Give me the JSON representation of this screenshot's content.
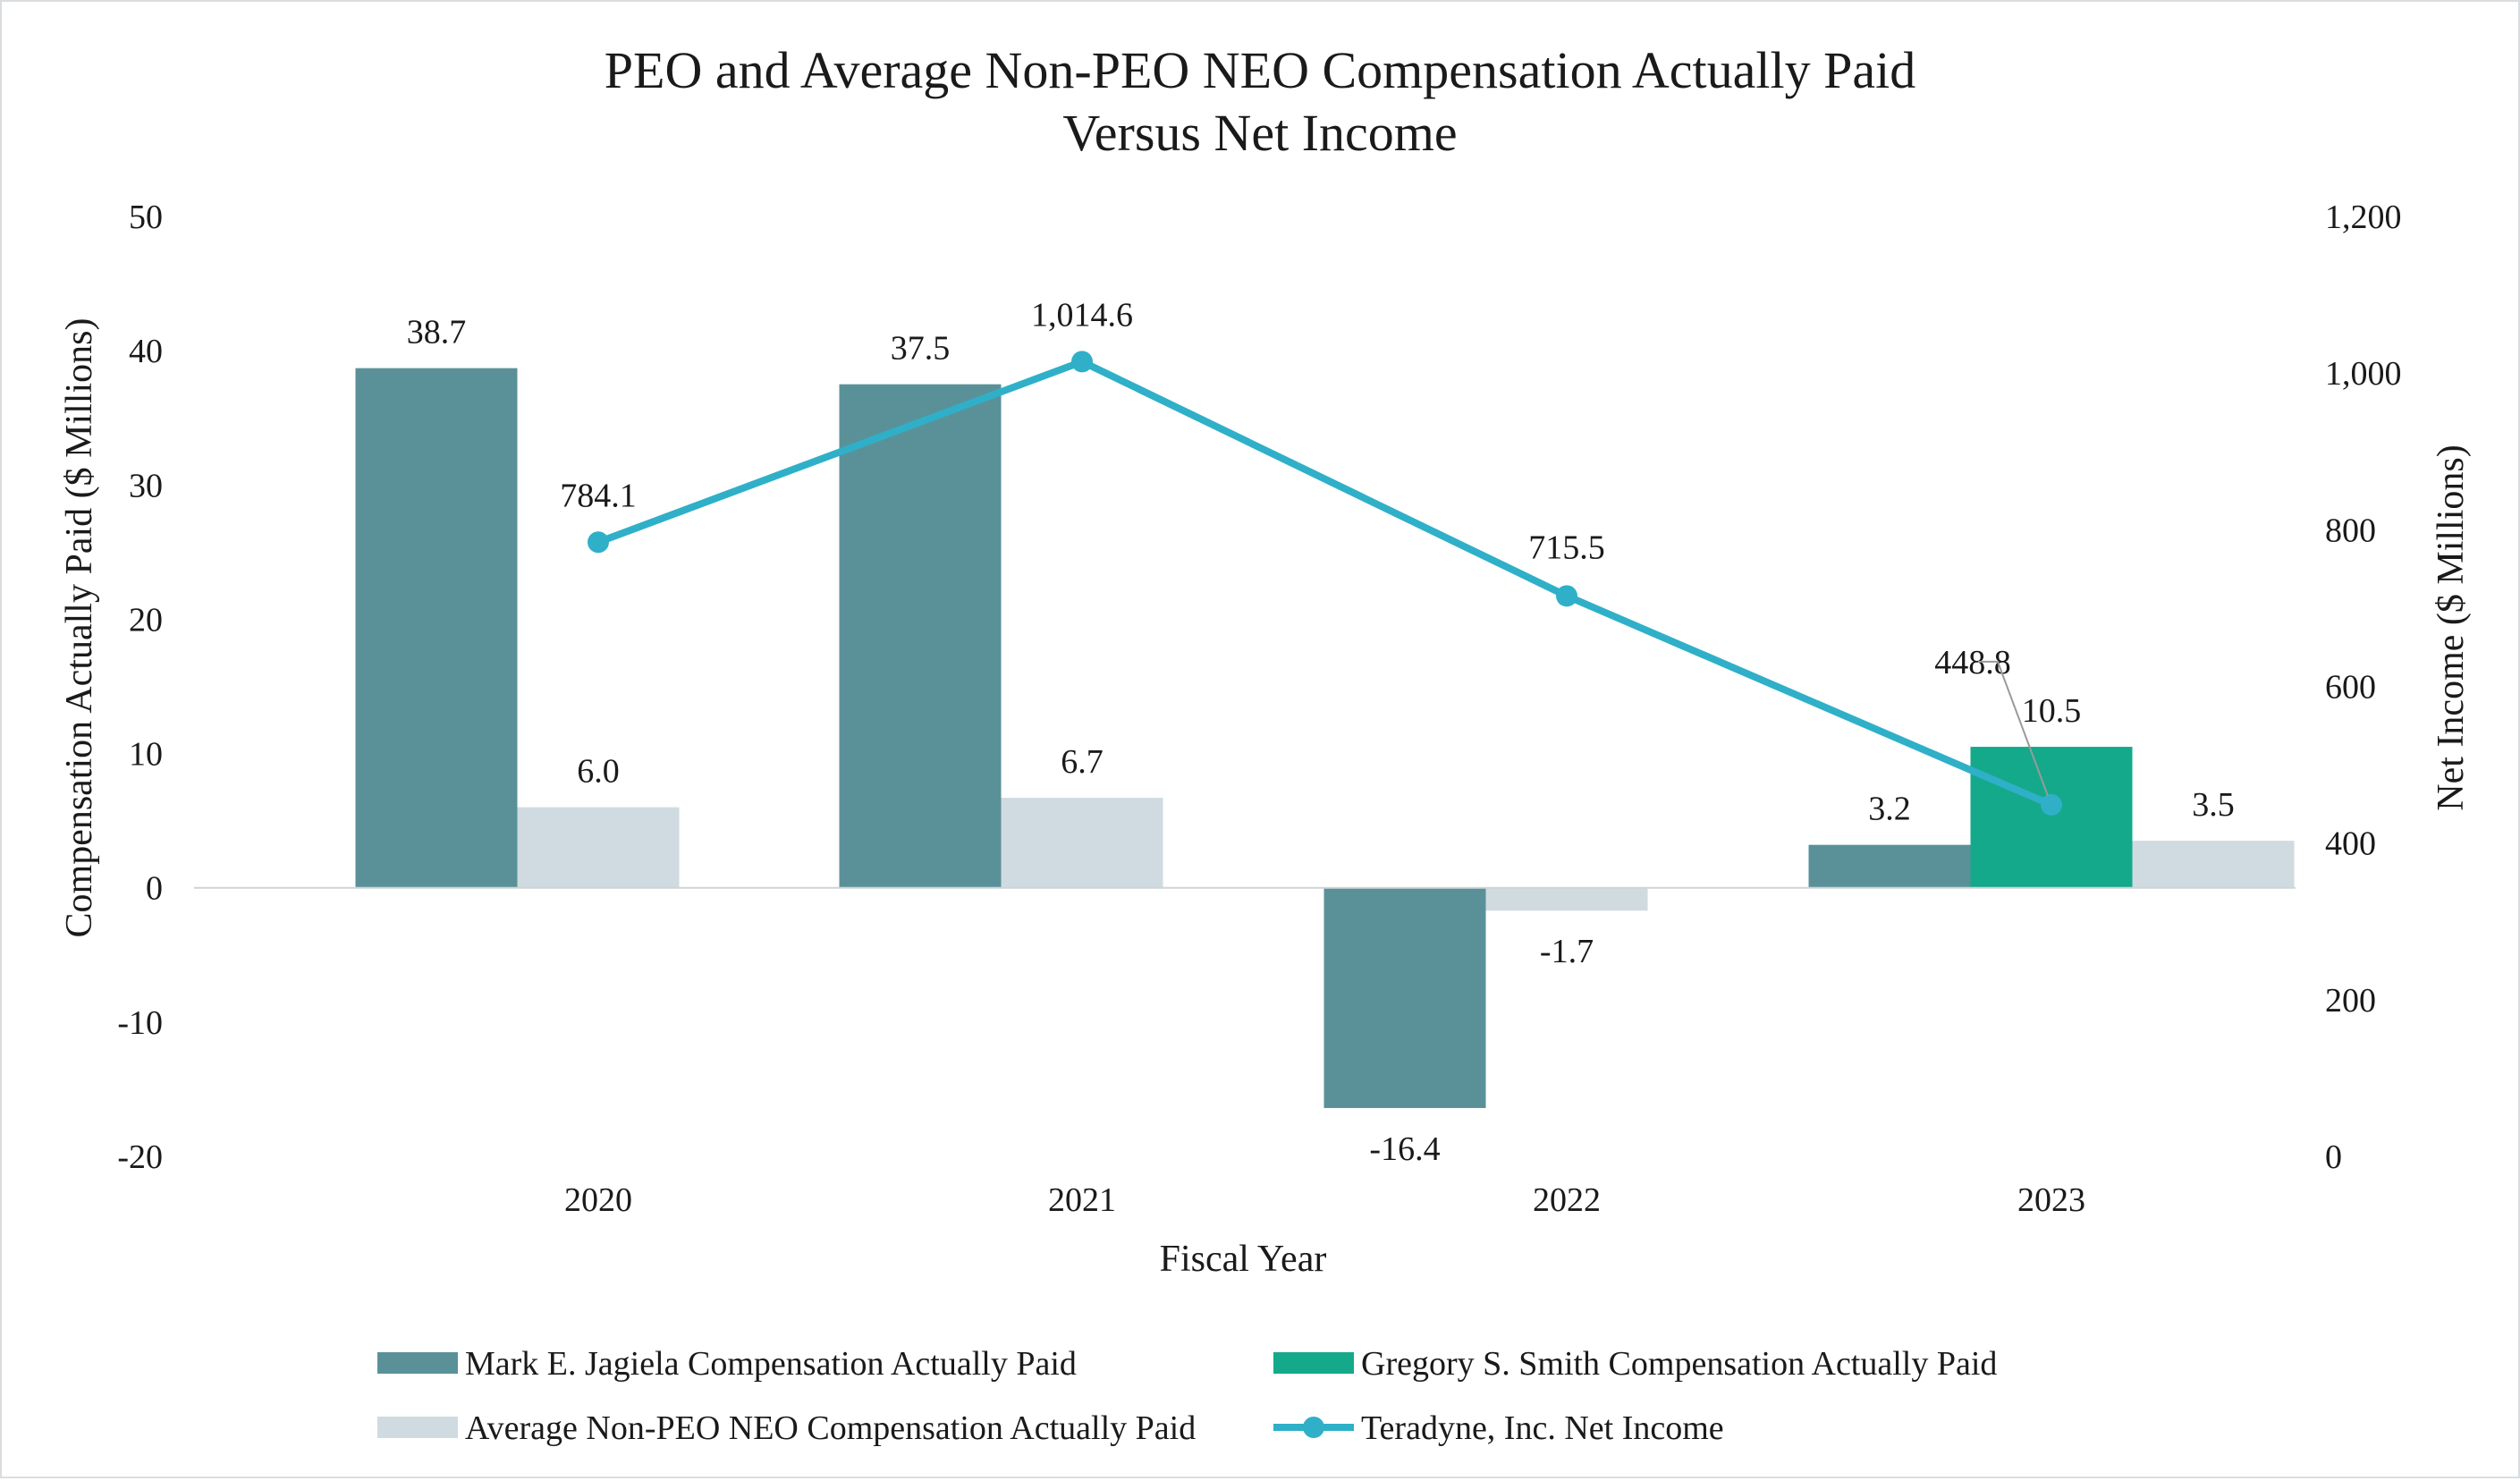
{
  "chart_data": {
    "type": "bar",
    "title_lines": [
      "PEO and Average Non-PEO NEO Compensation Actually Paid",
      "Versus Net Income"
    ],
    "xlabel": "Fiscal Year",
    "ylabel": "Compensation Actually Paid ($ Millions)",
    "y2label": "Net Income ($ Millions)",
    "categories": [
      "2020",
      "2021",
      "2022",
      "2023"
    ],
    "ylim": [
      -20,
      50
    ],
    "yticks": [
      "50",
      "40",
      "30",
      "20",
      "10",
      "0",
      "-10",
      "-20"
    ],
    "ytick_values": [
      50,
      40,
      30,
      20,
      10,
      0,
      -10,
      -20
    ],
    "y2lim": [
      0,
      1200
    ],
    "y2ticks": [
      "1,200",
      "1,000",
      "800",
      "600",
      "400",
      "200",
      "0"
    ],
    "y2tick_values": [
      1200,
      1000,
      800,
      600,
      400,
      200,
      0
    ],
    "grid": false,
    "legend_position": "bottom",
    "series": [
      {
        "name": "Mark E. Jagiela Compensation Actually Paid",
        "type": "bar",
        "color": "#5a9199",
        "values": [
          38.7,
          37.5,
          -16.4,
          3.2
        ],
        "labels": [
          "38.7",
          "37.5",
          "-16.4",
          "3.2"
        ]
      },
      {
        "name": "Gregory S. Smith Compensation Actually Paid",
        "type": "bar",
        "color": "#14a98b",
        "values": [
          null,
          null,
          null,
          10.5
        ],
        "labels": [
          "",
          "",
          "",
          "10.5"
        ]
      },
      {
        "name": "Average Non-PEO NEO Compensation Actually Paid",
        "type": "bar",
        "color": "#cfdbe0",
        "values": [
          6.0,
          6.7,
          -1.7,
          3.5
        ],
        "labels": [
          "6.0",
          "6.7",
          "-1.7",
          "3.5"
        ]
      },
      {
        "name": "Teradyne, Inc. Net Income",
        "type": "line",
        "axis": "y2",
        "color": "#2fb0c8",
        "values": [
          784.1,
          1014.6,
          715.5,
          448.8
        ],
        "labels": [
          "784.1",
          "1,014.6",
          "715.5",
          "448.8"
        ]
      }
    ]
  }
}
